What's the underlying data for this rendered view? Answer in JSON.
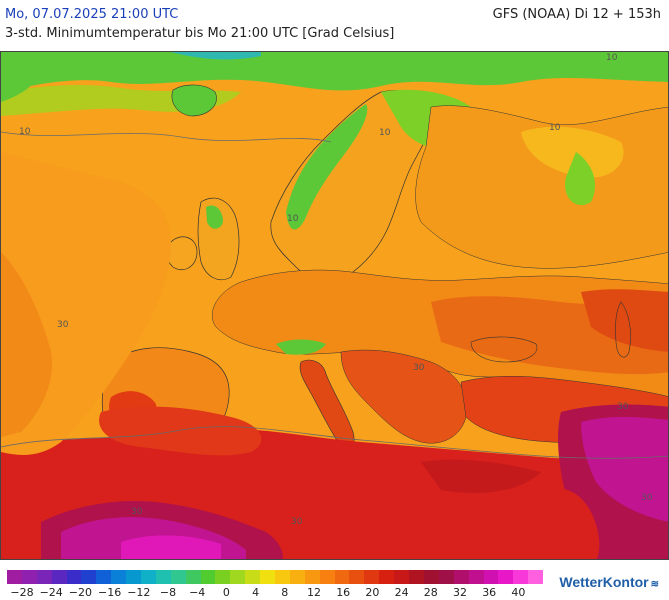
{
  "header": {
    "date_title": "Mo, 07.07.2025 21:00 UTC",
    "model_run": "GFS (NOAA) Di 12 + 153h",
    "subtitle": "3-std. Minimumtemperatur bis Mo 21:00 UTC [Grad Celsius]"
  },
  "map": {
    "region": "Europe",
    "contour_labels": [
      "10",
      "10",
      "10",
      "10",
      "10",
      "30",
      "30",
      "30",
      "30",
      "30",
      "30"
    ],
    "colors": {
      "sea": "#f79a1c",
      "land_warm": "#f4a020",
      "green_cool": "#5cc838",
      "hot_red": "#d8201c",
      "very_hot": "#b0124c",
      "extreme": "#c0149c"
    }
  },
  "legend": {
    "labels": [
      "−28",
      "−24",
      "−20",
      "−16",
      "−12",
      "−8",
      "−4",
      "0",
      "4",
      "8",
      "12",
      "16",
      "20",
      "24",
      "28",
      "32",
      "36",
      "40"
    ],
    "colors": [
      "#a01ca0",
      "#9020b0",
      "#7a24b8",
      "#5a28c0",
      "#3a2cc8",
      "#2040d0",
      "#1060d8",
      "#0a80d8",
      "#0898d0",
      "#10b0c8",
      "#20c0b0",
      "#30c890",
      "#40c860",
      "#50cc30",
      "#7ad020",
      "#a0d820",
      "#c8dc18",
      "#f0e010",
      "#f8c810",
      "#f8b010",
      "#f89810",
      "#f88010",
      "#f06810",
      "#e85010",
      "#e03810",
      "#d82010",
      "#c81818",
      "#b01420",
      "#a01030",
      "#a01048",
      "#b0106c",
      "#c01090",
      "#d010b0",
      "#e818c8",
      "#f838d8",
      "#ff60e0"
    ],
    "brand": "WetterKontor",
    "brand_mark": "≋"
  }
}
